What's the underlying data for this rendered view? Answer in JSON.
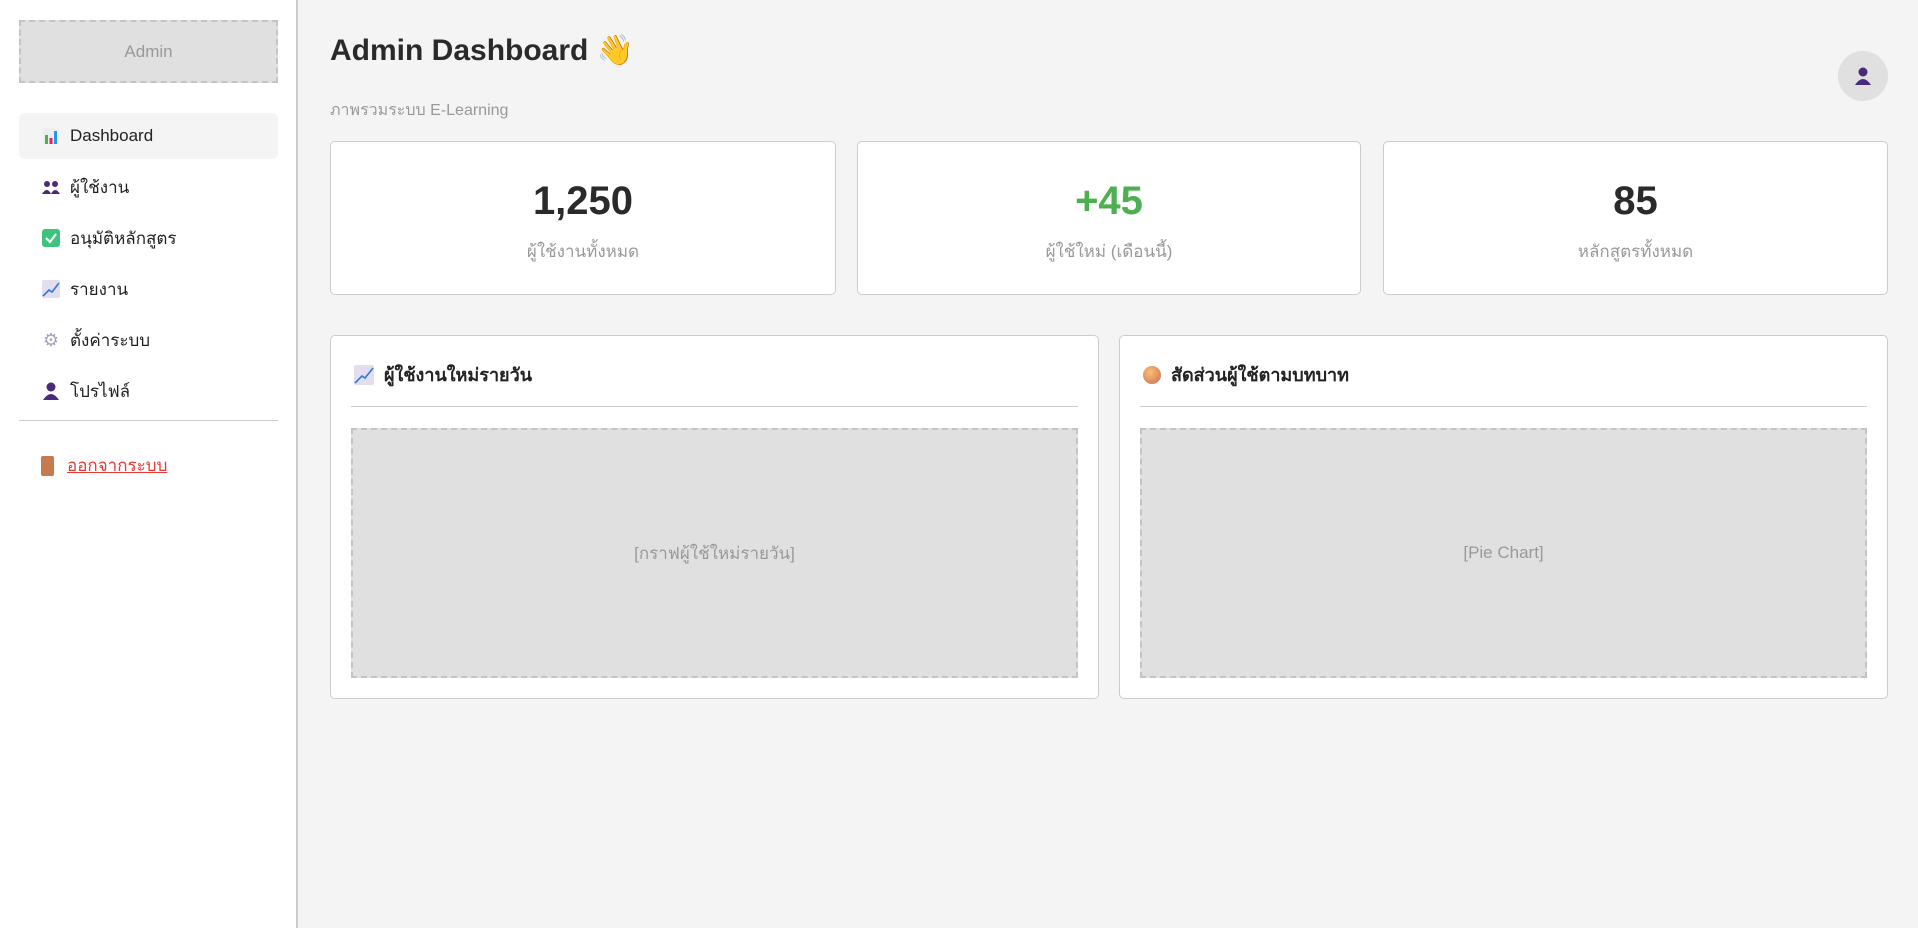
{
  "sidebar": {
    "logo": "Admin",
    "items": [
      {
        "label": "Dashboard",
        "icon": "bar-chart-icon",
        "active": true
      },
      {
        "label": "ผู้ใช้งาน",
        "icon": "users-icon"
      },
      {
        "label": "อนุมัติหลักสูตร",
        "icon": "check-icon"
      },
      {
        "label": "รายงาน",
        "icon": "trend-chart-icon"
      },
      {
        "label": "ตั้งค่าระบบ",
        "icon": "gear-icon"
      },
      {
        "label": "โปรไฟล์",
        "icon": "user-icon"
      }
    ],
    "logout": "ออกจากระบบ"
  },
  "header": {
    "title": "Admin Dashboard",
    "title_icon": "waving-hand-icon",
    "subtitle": "ภาพรวมระบบ E-Learning",
    "avatar_icon": "user-icon"
  },
  "stats": [
    {
      "value": "1,250",
      "label": "ผู้ใช้งานทั้งหมด",
      "color": "#2a2a2a"
    },
    {
      "value": "+45",
      "label": "ผู้ใช้ใหม่ (เดือนนี้)",
      "color": "#4caf50"
    },
    {
      "value": "85",
      "label": "หลักสูตรทั้งหมด",
      "color": "#2a2a2a"
    }
  ],
  "panels": [
    {
      "title": "ผู้ใช้งานใหม่รายวัน",
      "icon": "trend-chart-icon",
      "placeholder": "[กราฟผู้ใช้ใหม่รายวัน]"
    },
    {
      "title": "สัดส่วนผู้ใช้ตามบทบาท",
      "icon": "pie-chart-icon",
      "placeholder": "[Pie Chart]"
    }
  ]
}
